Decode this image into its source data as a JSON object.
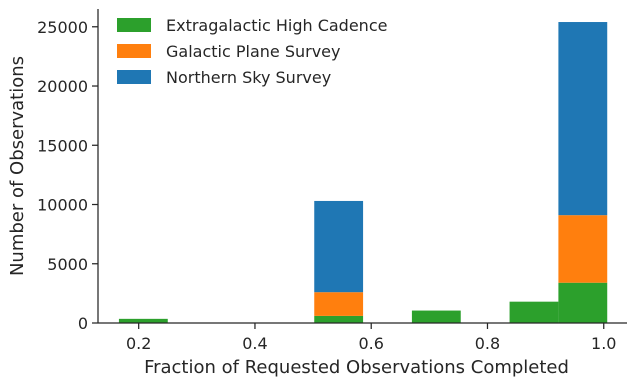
{
  "chart_data": {
    "type": "bar",
    "stacked": true,
    "title": "",
    "xlabel": "Fraction of Requested Observations Completed",
    "ylabel": "Number of Observations",
    "xlim": [
      0.13,
      1.04
    ],
    "ylim": [
      0,
      26500
    ],
    "bin_width": 0.084,
    "bin_centers": [
      0.208,
      0.292,
      0.376,
      0.46,
      0.544,
      0.628,
      0.712,
      0.796,
      0.88,
      0.964
    ],
    "x_ticks": [
      0.2,
      0.4,
      0.6,
      0.8,
      1.0
    ],
    "x_tick_labels": [
      "0.2",
      "0.4",
      "0.6",
      "0.8",
      "1.0"
    ],
    "y_ticks": [
      0,
      5000,
      10000,
      15000,
      20000,
      25000
    ],
    "y_tick_labels": [
      "0",
      "5000",
      "10000",
      "15000",
      "20000",
      "25000"
    ],
    "grid": false,
    "legend_position": "top-left",
    "series": [
      {
        "name": "Extragalactic High Cadence",
        "color": "#2ca02c",
        "values": [
          350,
          0,
          0,
          0,
          600,
          0,
          1050,
          0,
          1800,
          3400
        ]
      },
      {
        "name": "Galactic Plane Survey",
        "color": "#ff7f0e",
        "values": [
          0,
          0,
          0,
          0,
          2000,
          0,
          0,
          0,
          0,
          5700
        ]
      },
      {
        "name": "Northern Sky Survey",
        "color": "#1f77b4",
        "values": [
          0,
          0,
          0,
          0,
          7700,
          0,
          0,
          0,
          0,
          16300
        ]
      }
    ]
  }
}
